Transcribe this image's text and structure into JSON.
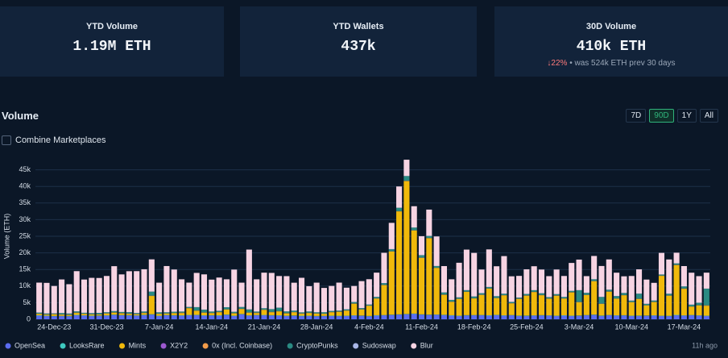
{
  "cards": [
    {
      "label": "YTD Volume",
      "value": "1.19M ETH"
    },
    {
      "label": "YTD Wallets",
      "value": "437k"
    },
    {
      "label": "30D Volume",
      "value": "410k ETH",
      "change": "↓22%",
      "note": "• was 524k ETH prev 30 days"
    }
  ],
  "ranges": [
    "7D",
    "90D",
    "1Y",
    "All"
  ],
  "combine_label": "Combine Marketplaces",
  "updated": "11h ago",
  "chart_data": {
    "type": "stacked-bar",
    "title": "Volume",
    "y_label": "Volume (ETH)",
    "categories": [
      null,
      null,
      "24-Dec-23",
      null,
      null,
      null,
      null,
      null,
      null,
      "31-Dec-23",
      null,
      null,
      null,
      null,
      null,
      null,
      "7-Jan-24",
      null,
      null,
      null,
      null,
      null,
      null,
      "14-Jan-24",
      null,
      null,
      null,
      null,
      null,
      null,
      "21-Jan-24",
      null,
      null,
      null,
      null,
      null,
      null,
      "28-Jan-24",
      null,
      null,
      null,
      null,
      null,
      null,
      "4-Feb-24",
      null,
      null,
      null,
      null,
      null,
      null,
      "11-Feb-24",
      null,
      null,
      null,
      null,
      null,
      null,
      "18-Feb-24",
      null,
      null,
      null,
      null,
      null,
      null,
      "25-Feb-24",
      null,
      null,
      null,
      null,
      null,
      null,
      "3-Mar-24",
      null,
      null,
      null,
      null,
      null,
      null,
      "10-Mar-24",
      null,
      null,
      null,
      null,
      null,
      null,
      "17-Mar-24",
      null,
      null,
      null
    ],
    "ylim": [
      0,
      50000
    ],
    "yticks": [
      0,
      {
        "value": 5000,
        "label": "5k"
      },
      {
        "value": 10000,
        "label": "10k"
      },
      {
        "value": 15000,
        "label": "15k"
      },
      {
        "value": 20000,
        "label": "20k"
      },
      {
        "value": 25000,
        "label": "25k"
      },
      {
        "value": 30000,
        "label": "30k"
      },
      {
        "value": 35000,
        "label": "35k"
      },
      {
        "value": 40000,
        "label": "40k"
      },
      {
        "value": 45000,
        "label": "45k"
      }
    ],
    "grid": true,
    "legend": "bottom",
    "series": [
      {
        "name": "OpenSea",
        "color": "#5b6cf0",
        "values": [
          1100,
          1000,
          900,
          950,
          900,
          1200,
          1100,
          1000,
          1050,
          1100,
          1300,
          1200,
          1150,
          1100,
          1250,
          1400,
          1000,
          1200,
          1150,
          1100,
          1200,
          1250,
          1100,
          1150,
          1100,
          1300,
          1000,
          1500,
          1100,
          1200,
          1200,
          1150,
          1100,
          1000,
          1050,
          950,
          1000,
          900,
          950,
          1000,
          950,
          1000,
          1100,
          1050,
          900,
          1100,
          1200,
          1300,
          1400,
          1500,
          1600,
          1400,
          1300,
          1350,
          1250,
          1100,
          1000,
          1150,
          1200,
          1200,
          1100,
          1250,
          1100,
          1200,
          1000,
          1000,
          1100,
          1150,
          1100,
          1000,
          1100,
          1000,
          1050,
          1200,
          1300,
          1000,
          1200,
          1100,
          1150,
          1000,
          1000,
          1050,
          1100,
          1000,
          950,
          1200,
          1100,
          1200,
          1100,
          1000
        ]
      },
      {
        "name": "LooksRare",
        "color": "#3ec9c0",
        "values": [
          120,
          90,
          100,
          80,
          110,
          130,
          90,
          100,
          85,
          95,
          120,
          90,
          100,
          80,
          110,
          130,
          90,
          100,
          85,
          95,
          120,
          90,
          100,
          80,
          110,
          130,
          90,
          100,
          85,
          95,
          120,
          90,
          100,
          80,
          110,
          130,
          90,
          100,
          85,
          95,
          120,
          90,
          100,
          80,
          110,
          130,
          90,
          100,
          85,
          95,
          120,
          90,
          100,
          80,
          110,
          130,
          90,
          100,
          85,
          95,
          120,
          90,
          100,
          80,
          110,
          130,
          90,
          100,
          85,
          95,
          120,
          90,
          100,
          80,
          110,
          130,
          90,
          100,
          85,
          95,
          120,
          90,
          100,
          80,
          110,
          130,
          90,
          100,
          85,
          95
        ]
      },
      {
        "name": "Mints",
        "color": "#f0b90b",
        "values": [
          400,
          300,
          500,
          350,
          300,
          600,
          400,
          350,
          300,
          500,
          600,
          500,
          400,
          300,
          500,
          5500,
          500,
          400,
          600,
          700,
          2000,
          1200,
          800,
          600,
          900,
          1500,
          700,
          1500,
          800,
          600,
          1500,
          900,
          1200,
          700,
          900,
          600,
          800,
          700,
          600,
          1000,
          1200,
          1500,
          3500,
          1800,
          3000,
          5000,
          9000,
          19000,
          31000,
          40000,
          25000,
          17000,
          23000,
          14000,
          6000,
          4000,
          5000,
          7000,
          5000,
          6000,
          8000,
          5000,
          6000,
          3500,
          5000,
          6000,
          7000,
          6000,
          5000,
          6000,
          5000,
          7000,
          4000,
          6000,
          10000,
          3500,
          7000,
          5000,
          6000,
          4000,
          5000,
          3000,
          4000,
          12000,
          6000,
          15000,
          8000,
          2500,
          3000,
          3000
        ]
      },
      {
        "name": "X2Y2",
        "color": "#9b59d0",
        "values": [
          20,
          15,
          25,
          10,
          20,
          30,
          15,
          20,
          10,
          25,
          20,
          15,
          25,
          10,
          20,
          30,
          15,
          20,
          10,
          25,
          20,
          15,
          25,
          10,
          20,
          30,
          15,
          20,
          10,
          25,
          20,
          15,
          25,
          10,
          20,
          30,
          15,
          20,
          10,
          25,
          20,
          15,
          25,
          10,
          20,
          30,
          15,
          20,
          10,
          25,
          20,
          15,
          25,
          10,
          20,
          30,
          15,
          20,
          10,
          25,
          20,
          15,
          25,
          10,
          20,
          30,
          15,
          20,
          10,
          25,
          20,
          15,
          25,
          10,
          20,
          30,
          15,
          20,
          10,
          25,
          20,
          15,
          25,
          10,
          20,
          30,
          15,
          20,
          10,
          25
        ]
      },
      {
        "name": "0x (Incl. Coinbase)",
        "color": "#f39c4a",
        "values": [
          60,
          80,
          50,
          70,
          90,
          60,
          75,
          55,
          65,
          85,
          60,
          80,
          50,
          70,
          90,
          60,
          75,
          55,
          65,
          85,
          60,
          80,
          50,
          70,
          90,
          60,
          75,
          55,
          65,
          85,
          60,
          80,
          50,
          70,
          90,
          60,
          75,
          55,
          65,
          85,
          60,
          80,
          50,
          70,
          90,
          60,
          75,
          55,
          65,
          85,
          60,
          80,
          50,
          70,
          90,
          60,
          75,
          55,
          65,
          85,
          60,
          80,
          50,
          70,
          90,
          60,
          75,
          55,
          65,
          85,
          60,
          80,
          50,
          70,
          90,
          60,
          75,
          55,
          65,
          85,
          60,
          80,
          50,
          70,
          90,
          60,
          75,
          55,
          65,
          85
        ]
      },
      {
        "name": "CryptoPunks",
        "color": "#2a8a83",
        "values": [
          300,
          250,
          200,
          400,
          300,
          350,
          250,
          300,
          400,
          300,
          350,
          300,
          400,
          300,
          350,
          1200,
          400,
          300,
          350,
          300,
          300,
          1000,
          800,
          400,
          300,
          600,
          350,
          500,
          900,
          300,
          400,
          800,
          1000,
          500,
          400,
          300,
          350,
          300,
          400,
          300,
          250,
          300,
          400,
          350,
          300,
          400,
          500,
          600,
          1000,
          1400,
          800,
          700,
          600,
          500,
          600,
          500,
          400,
          400,
          500,
          450,
          400,
          500,
          400,
          350,
          300,
          400,
          450,
          500,
          400,
          350,
          400,
          350,
          3500,
          600,
          500,
          2000,
          500,
          700,
          600,
          400,
          1500,
          400,
          350,
          300,
          500,
          400,
          600,
          500,
          700,
          5000
        ]
      },
      {
        "name": "Sudoswap",
        "color": "#a9b7e8",
        "values": [
          40,
          30,
          50,
          35,
          45,
          25,
          40,
          55,
          30,
          35,
          40,
          30,
          50,
          35,
          45,
          25,
          40,
          55,
          30,
          35,
          40,
          30,
          50,
          35,
          45,
          25,
          40,
          55,
          30,
          35,
          40,
          30,
          50,
          35,
          45,
          25,
          40,
          55,
          30,
          35,
          40,
          30,
          50,
          35,
          45,
          25,
          40,
          55,
          30,
          35,
          40,
          30,
          50,
          35,
          45,
          25,
          40,
          55,
          30,
          35,
          40,
          30,
          50,
          35,
          45,
          25,
          40,
          55,
          30,
          35,
          40,
          30,
          50,
          35,
          45,
          25,
          40,
          55,
          30,
          35,
          40,
          30,
          50,
          35,
          45,
          25,
          40,
          55,
          30,
          35
        ]
      },
      {
        "name": "Blur",
        "color": "#f7d4e3",
        "values": [
          9000,
          9200,
          8200,
          10100,
          8800,
          12100,
          10000,
          10600,
          10500,
          10900,
          13500,
          11300,
          12300,
          12600,
          12700,
          9700,
          8900,
          13900,
          12700,
          9700,
          7300,
          10300,
          10600,
          9600,
          10000,
          8400,
          12700,
          7300,
          18000,
          9700,
          10700,
          10900,
          9500,
          10600,
          8400,
          10400,
          7600,
          8900,
          7300,
          7500,
          8400,
          6500,
          4800,
          8100,
          7600,
          7300,
          9100,
          7900,
          6400,
          4900,
          6400,
          5700,
          7900,
          8900,
          7900,
          6200,
          10400,
          12200,
          13100,
          7100,
          11300,
          9000,
          11300,
          7700,
          6500,
          7400,
          7200,
          7100,
          6300,
          7400,
          6300,
          8400,
          9200,
          5000,
          7000,
          9300,
          9100,
          7000,
          5000,
          7400,
          7300,
          7300,
          5300,
          6500,
          10300,
          3200,
          6100,
          9600,
          8000,
          4800
        ]
      }
    ]
  }
}
